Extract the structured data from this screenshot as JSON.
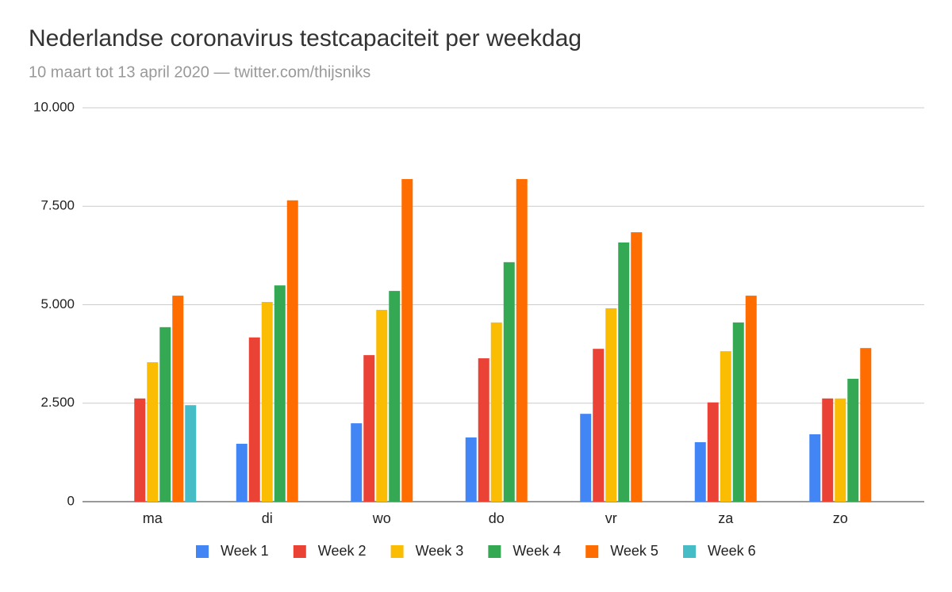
{
  "chart_data": {
    "type": "bar",
    "title": "Nederlandse coronavirus testcapaciteit per weekdag",
    "subtitle": "10 maart tot 13 april 2020 — twitter.com/thijsniks",
    "categories": [
      "ma",
      "di",
      "wo",
      "do",
      "vr",
      "za",
      "zo"
    ],
    "series": [
      {
        "name": "Week 1",
        "color": "#4285f4",
        "values": [
          null,
          1470,
          1990,
          1630,
          2230,
          1510,
          1710
        ]
      },
      {
        "name": "Week 2",
        "color": "#ea4335",
        "values": [
          2620,
          4170,
          3720,
          3640,
          3880,
          2520,
          2620
        ]
      },
      {
        "name": "Week 3",
        "color": "#fbbc04",
        "values": [
          3540,
          5070,
          4870,
          4550,
          4910,
          3820,
          2620
        ]
      },
      {
        "name": "Week 4",
        "color": "#34a853",
        "values": [
          4430,
          5490,
          5350,
          6080,
          6580,
          4550,
          3120
        ]
      },
      {
        "name": "Week 5",
        "color": "#ff6d01",
        "values": [
          5230,
          7650,
          8190,
          8190,
          6840,
          5230,
          3900
        ]
      },
      {
        "name": "Week 6",
        "color": "#46bdc6",
        "values": [
          2450,
          null,
          null,
          null,
          null,
          null,
          null
        ]
      }
    ],
    "ylim": [
      0,
      10000
    ],
    "yticks": [
      0,
      {
        "value": 2500,
        "label": "2.500"
      },
      {
        "value": 5000,
        "label": "5.000"
      },
      {
        "value": 7500,
        "label": "7.500"
      },
      {
        "value": 10000,
        "label": "10.000"
      }
    ],
    "grid": true,
    "legend": "bottom"
  }
}
